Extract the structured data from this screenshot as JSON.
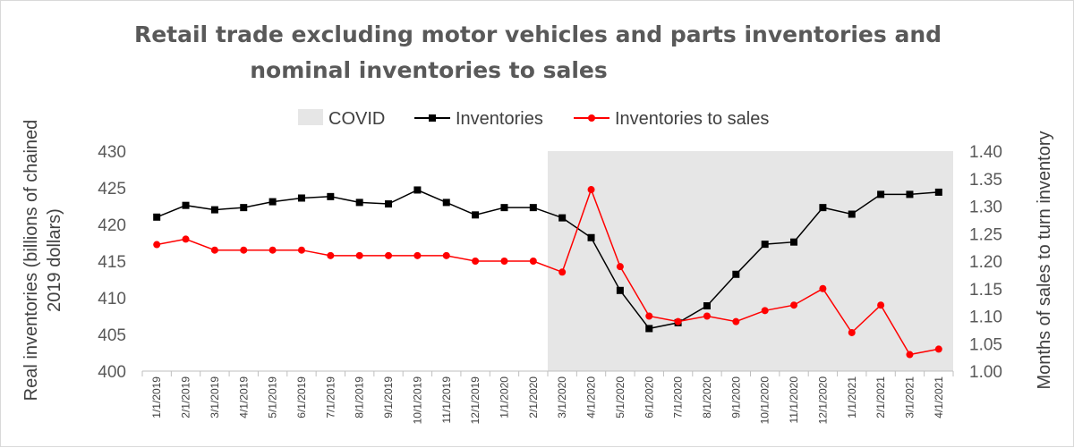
{
  "chart_data": {
    "type": "line",
    "title_lines": [
      "Retail trade excluding motor vehicles and parts inventories and",
      "nominal inventories to sales"
    ],
    "legend": [
      {
        "label": "COVID",
        "kind": "shade",
        "color": "#e6e6e6"
      },
      {
        "label": "Inventories",
        "kind": "line-square",
        "color": "#000000"
      },
      {
        "label": "Inventories to sales",
        "kind": "line-circle",
        "color": "#ff0000"
      }
    ],
    "legend_position": "top",
    "categories": [
      "1/1/2019",
      "2/1/2019",
      "3/1/2019",
      "4/1/2019",
      "5/1/2019",
      "6/1/2019",
      "7/1/2019",
      "8/1/2019",
      "9/1/2019",
      "10/1/2019",
      "11/1/2019",
      "12/1/2019",
      "1/1/2020",
      "2/1/2020",
      "3/1/2020",
      "4/1/2020",
      "5/1/2020",
      "6/1/2020",
      "7/1/2020",
      "8/1/2020",
      "9/1/2020",
      "10/1/2020",
      "11/1/2020",
      "12/1/2020",
      "1/1/2021",
      "2/1/2021",
      "3/1/2021",
      "4/1/2021"
    ],
    "covid_shade": {
      "start": "3/1/2020",
      "end": "4/1/2021"
    },
    "y_left": {
      "label_lines": [
        "Real inventories (billions of chained",
        "2019 dollars)"
      ],
      "min": 400,
      "max": 430,
      "ticks": [
        "400",
        "405",
        "410",
        "415",
        "420",
        "425",
        "430"
      ]
    },
    "y_right": {
      "label": "Months of sales to turn inventory",
      "min": 1.0,
      "max": 1.4,
      "ticks": [
        "1.00",
        "1.05",
        "1.10",
        "1.15",
        "1.20",
        "1.25",
        "1.30",
        "1.35",
        "1.40"
      ]
    },
    "series": [
      {
        "name": "Inventories",
        "axis": "left",
        "color": "#000000",
        "marker": "square",
        "values": [
          421.0,
          422.6,
          422.0,
          422.3,
          423.1,
          423.6,
          423.8,
          423.0,
          422.8,
          424.7,
          423.0,
          421.3,
          422.3,
          422.3,
          420.9,
          418.2,
          411.0,
          405.8,
          406.6,
          408.9,
          413.2,
          417.3,
          417.6,
          422.3,
          421.4,
          424.1,
          424.1,
          424.4
        ]
      },
      {
        "name": "Inventories to sales",
        "axis": "right",
        "color": "#ff0000",
        "marker": "circle",
        "values": [
          1.23,
          1.24,
          1.22,
          1.22,
          1.22,
          1.22,
          1.21,
          1.21,
          1.21,
          1.21,
          1.21,
          1.2,
          1.2,
          1.2,
          1.18,
          1.33,
          1.19,
          1.1,
          1.09,
          1.1,
          1.09,
          1.11,
          1.12,
          1.15,
          1.07,
          1.12,
          1.03,
          1.04
        ]
      }
    ]
  }
}
